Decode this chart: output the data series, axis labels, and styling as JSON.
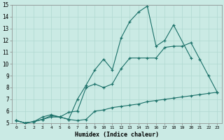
{
  "xlabel": "Humidex (Indice chaleur)",
  "background_color": "#caeae4",
  "grid_color": "#b0d8d0",
  "line_color": "#1a7068",
  "xlim": [
    -0.5,
    23.5
  ],
  "ylim": [
    5,
    15
  ],
  "xticks": [
    0,
    1,
    2,
    3,
    4,
    5,
    6,
    7,
    8,
    9,
    10,
    11,
    12,
    13,
    14,
    15,
    16,
    17,
    18,
    19,
    20,
    21,
    22,
    23
  ],
  "yticks": [
    5,
    6,
    7,
    8,
    9,
    10,
    11,
    12,
    13,
    14,
    15
  ],
  "series": [
    {
      "x": [
        0,
        1,
        2,
        3,
        4,
        5,
        6,
        7,
        8,
        9,
        10,
        11,
        12,
        13,
        14,
        15,
        16,
        17,
        18,
        20
      ],
      "y": [
        5.2,
        5.0,
        5.1,
        5.3,
        5.6,
        5.5,
        5.3,
        7.0,
        8.2,
        9.5,
        10.4,
        9.5,
        12.2,
        13.6,
        14.4,
        14.9,
        11.5,
        12.0,
        13.3,
        10.5
      ]
    },
    {
      "x": [
        0,
        1,
        2,
        3,
        4,
        5,
        6,
        7,
        8,
        9,
        10,
        11,
        12,
        13,
        14,
        15,
        16,
        17,
        18,
        19,
        20,
        21,
        22,
        23
      ],
      "y": [
        5.2,
        5.0,
        5.1,
        5.5,
        5.7,
        5.5,
        5.9,
        6.0,
        8.0,
        8.3,
        8.0,
        8.3,
        9.6,
        10.5,
        10.5,
        10.5,
        10.5,
        11.4,
        11.5,
        11.5,
        11.8,
        10.4,
        9.0,
        7.6
      ]
    },
    {
      "x": [
        0,
        1,
        2,
        3,
        4,
        5,
        6,
        7,
        8,
        9,
        10,
        11,
        12,
        13,
        14,
        15,
        16,
        17,
        18,
        19,
        20,
        21,
        22,
        23
      ],
      "y": [
        5.2,
        5.0,
        5.1,
        5.3,
        5.5,
        5.5,
        5.3,
        5.2,
        5.3,
        6.0,
        6.1,
        6.3,
        6.4,
        6.5,
        6.6,
        6.8,
        6.9,
        7.0,
        7.1,
        7.2,
        7.3,
        7.4,
        7.5,
        7.6
      ]
    }
  ]
}
